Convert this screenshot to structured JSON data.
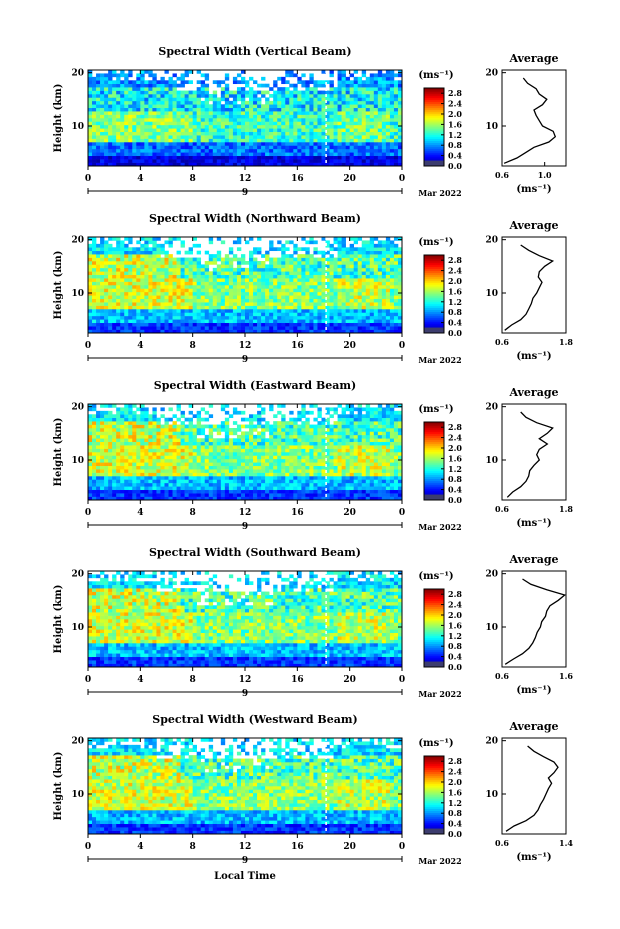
{
  "figure": {
    "xlabel": "Local Time",
    "ylabel": "Height (km)",
    "cbar_label": "(ms⁻¹)",
    "avg_title": "Average",
    "avg_xlabel": "(ms⁻¹)",
    "date_label": "Mar 2022",
    "date_day": "9"
  },
  "chart_data": [
    {
      "type": "heatmap",
      "title": "Spectral Width (Vertical Beam)",
      "xlabel": "Local Time",
      "ylabel": "Height (km)",
      "xlim": [
        0,
        24
      ],
      "ylim": [
        2.5,
        20.5
      ],
      "xticks": [
        "0",
        "4",
        "8",
        "12",
        "16",
        "20",
        "0"
      ],
      "yticks": [
        "10",
        "20"
      ],
      "colorbar": {
        "label": "(ms⁻¹)",
        "ticks": [
          "0.0",
          "0.4",
          "0.8",
          "1.2",
          "1.6",
          "2.0",
          "2.4",
          "2.8"
        ],
        "range": [
          0,
          3.0
        ]
      },
      "average_profile": {
        "title": "Average",
        "xlabel": "(ms⁻¹)",
        "xlim": [
          0.6,
          1.2
        ],
        "xticks": [
          "0.6",
          "1.0"
        ],
        "heights": [
          3,
          4,
          5,
          6,
          7,
          8,
          9,
          10,
          11,
          12,
          13,
          14,
          15,
          16,
          17,
          18,
          19
        ],
        "values": [
          0.62,
          0.74,
          0.82,
          0.9,
          1.04,
          1.1,
          1.08,
          0.98,
          0.95,
          0.92,
          0.9,
          0.98,
          1.02,
          0.95,
          0.92,
          0.84,
          0.8
        ]
      }
    },
    {
      "type": "heatmap",
      "title": "Spectral Width (Northward Beam)",
      "xlabel": "Local Time",
      "ylabel": "Height (km)",
      "xlim": [
        0,
        24
      ],
      "ylim": [
        2.5,
        20.5
      ],
      "xticks": [
        "0",
        "4",
        "8",
        "12",
        "16",
        "20",
        "0"
      ],
      "yticks": [
        "10",
        "20"
      ],
      "colorbar": {
        "label": "(ms⁻¹)",
        "ticks": [
          "0.0",
          "0.4",
          "0.8",
          "1.2",
          "1.6",
          "2.0",
          "2.4",
          "2.8"
        ],
        "range": [
          0,
          3.0
        ]
      },
      "average_profile": {
        "title": "Average",
        "xlabel": "(ms⁻¹)",
        "xlim": [
          0.6,
          1.8
        ],
        "xticks": [
          "0.6",
          "1.8"
        ],
        "heights": [
          3,
          4,
          5,
          6,
          7,
          8,
          9,
          10,
          11,
          12,
          13,
          14,
          15,
          16,
          17,
          18,
          19
        ],
        "values": [
          0.65,
          0.78,
          0.95,
          1.05,
          1.1,
          1.15,
          1.18,
          1.25,
          1.3,
          1.35,
          1.28,
          1.3,
          1.4,
          1.55,
          1.3,
          1.1,
          0.95
        ]
      }
    },
    {
      "type": "heatmap",
      "title": "Spectral Width (Eastward Beam)",
      "xlabel": "Local Time",
      "ylabel": "Height (km)",
      "xlim": [
        0,
        24
      ],
      "ylim": [
        2.5,
        20.5
      ],
      "xticks": [
        "0",
        "4",
        "8",
        "12",
        "16",
        "20",
        "0"
      ],
      "yticks": [
        "10",
        "20"
      ],
      "colorbar": {
        "label": "(ms⁻¹)",
        "ticks": [
          "0.0",
          "0.4",
          "0.8",
          "1.2",
          "1.6",
          "2.0",
          "2.4",
          "2.8"
        ],
        "range": [
          0,
          3.0
        ]
      },
      "average_profile": {
        "title": "Average",
        "xlabel": "(ms⁻¹)",
        "xlim": [
          0.6,
          1.8
        ],
        "xticks": [
          "0.6",
          "1.8"
        ],
        "heights": [
          3,
          4,
          5,
          6,
          7,
          8,
          9,
          10,
          11,
          12,
          13,
          14,
          15,
          16,
          17,
          18,
          19
        ],
        "values": [
          0.7,
          0.8,
          0.95,
          1.05,
          1.1,
          1.12,
          1.2,
          1.3,
          1.25,
          1.3,
          1.45,
          1.3,
          1.45,
          1.55,
          1.25,
          1.05,
          0.95
        ]
      }
    },
    {
      "type": "heatmap",
      "title": "Spectral Width (Southward Beam)",
      "xlabel": "Local Time",
      "ylabel": "Height (km)",
      "xlim": [
        0,
        24
      ],
      "ylim": [
        2.5,
        20.5
      ],
      "xticks": [
        "0",
        "4",
        "8",
        "12",
        "16",
        "20",
        "0"
      ],
      "yticks": [
        "10",
        "20"
      ],
      "colorbar": {
        "label": "(ms⁻¹)",
        "ticks": [
          "0.0",
          "0.4",
          "0.8",
          "1.2",
          "1.6",
          "2.0",
          "2.4",
          "2.8"
        ],
        "range": [
          0,
          3.0
        ]
      },
      "average_profile": {
        "title": "Average",
        "xlabel": "(ms⁻¹)",
        "xlim": [
          0.6,
          1.6
        ],
        "xticks": [
          "0.6",
          "1.6"
        ],
        "heights": [
          3,
          4,
          5,
          6,
          7,
          8,
          9,
          10,
          11,
          12,
          13,
          14,
          15,
          16,
          17,
          18,
          19
        ],
        "values": [
          0.65,
          0.78,
          0.92,
          1.02,
          1.08,
          1.12,
          1.15,
          1.2,
          1.22,
          1.28,
          1.3,
          1.35,
          1.48,
          1.58,
          1.3,
          1.05,
          0.92
        ]
      }
    },
    {
      "type": "heatmap",
      "title": "Spectral Width (Westward Beam)",
      "xlabel": "Local Time",
      "ylabel": "Height (km)",
      "xlim": [
        0,
        24
      ],
      "ylim": [
        2.5,
        20.5
      ],
      "xticks": [
        "0",
        "4",
        "8",
        "12",
        "16",
        "20",
        "0"
      ],
      "yticks": [
        "10",
        "20"
      ],
      "colorbar": {
        "label": "(ms⁻¹)",
        "ticks": [
          "0.0",
          "0.4",
          "0.8",
          "1.2",
          "1.6",
          "2.0",
          "2.4",
          "2.8"
        ],
        "range": [
          0,
          3.0
        ]
      },
      "average_profile": {
        "title": "Average",
        "xlabel": "(ms⁻¹)",
        "xlim": [
          0.6,
          1.4
        ],
        "xticks": [
          "0.6",
          "1.4"
        ],
        "heights": [
          3,
          4,
          5,
          6,
          7,
          8,
          9,
          10,
          11,
          12,
          13,
          14,
          15,
          16,
          17,
          18,
          19
        ],
        "values": [
          0.65,
          0.75,
          0.9,
          1.0,
          1.05,
          1.08,
          1.12,
          1.15,
          1.18,
          1.22,
          1.18,
          1.25,
          1.3,
          1.25,
          1.12,
          1.0,
          0.92
        ]
      }
    }
  ]
}
